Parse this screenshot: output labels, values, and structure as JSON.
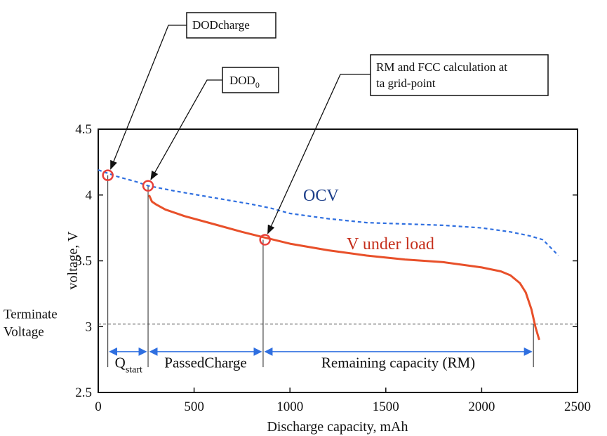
{
  "chart_data": {
    "type": "line",
    "xlabel": "Discharge capacity, mAh",
    "ylabel": "voltage, V",
    "xlim": [
      0,
      2500
    ],
    "ylim": [
      2.5,
      4.5
    ],
    "x_ticks": [
      "0",
      "500",
      "1000",
      "1500",
      "2000",
      "2500"
    ],
    "y_ticks": [
      "2.5",
      "3",
      "3.5",
      "4",
      "4.5"
    ],
    "grid": false,
    "series": [
      {
        "name": "OCV",
        "color": "#2f6fe0",
        "style": "dashed",
        "x": [
          0,
          100,
          200,
          260,
          400,
          600,
          800,
          900,
          1000,
          1200,
          1400,
          1600,
          1800,
          2000,
          2150,
          2250,
          2320,
          2400
        ],
        "y": [
          4.19,
          4.14,
          4.1,
          4.07,
          4.03,
          3.98,
          3.93,
          3.9,
          3.86,
          3.82,
          3.79,
          3.78,
          3.77,
          3.75,
          3.72,
          3.69,
          3.66,
          3.54
        ]
      },
      {
        "name": "V under load",
        "color": "#e8502a",
        "style": "solid",
        "x": [
          265,
          280,
          300,
          350,
          450,
          600,
          750,
          860,
          1000,
          1200,
          1400,
          1600,
          1800,
          1900,
          2000,
          2100,
          2150,
          2200,
          2230,
          2260,
          2280,
          2300
        ],
        "y": [
          4.0,
          3.95,
          3.93,
          3.89,
          3.84,
          3.78,
          3.72,
          3.68,
          3.63,
          3.58,
          3.54,
          3.51,
          3.49,
          3.47,
          3.45,
          3.42,
          3.39,
          3.33,
          3.26,
          3.13,
          3.0,
          2.9
        ]
      }
    ],
    "reference_lines": [
      {
        "label_lines": [
          "Terminate",
          "Voltage"
        ],
        "y": 3.02,
        "style": "dashed",
        "color": "#333333"
      }
    ],
    "markers": [
      {
        "x": 50,
        "y": 4.15,
        "color": "#e8403a"
      },
      {
        "x": 260,
        "y": 4.07,
        "color": "#e8403a"
      },
      {
        "x": 870,
        "y": 3.66,
        "color": "#e8403a"
      }
    ],
    "vertical_markers": [
      50,
      260,
      860,
      2270
    ],
    "regions": [
      {
        "from": 50,
        "to": 260,
        "label": "Q",
        "label_sub": "start"
      },
      {
        "from": 260,
        "to": 860,
        "label": "PassedCharge"
      },
      {
        "from": 860,
        "to": 2270,
        "label": "Remaining capacity (RM)"
      }
    ],
    "annotations": [
      {
        "text_lines": [
          "DODcharge"
        ],
        "target_x": 50,
        "target_y": 4.15
      },
      {
        "text_lines": [
          "DOD",
          "0"
        ],
        "target_x": 260,
        "target_y": 4.07,
        "subscript": true
      },
      {
        "text_lines": [
          "RM and FCC calculation at",
          "ta grid-point"
        ],
        "target_x": 870,
        "target_y": 3.66
      }
    ]
  }
}
